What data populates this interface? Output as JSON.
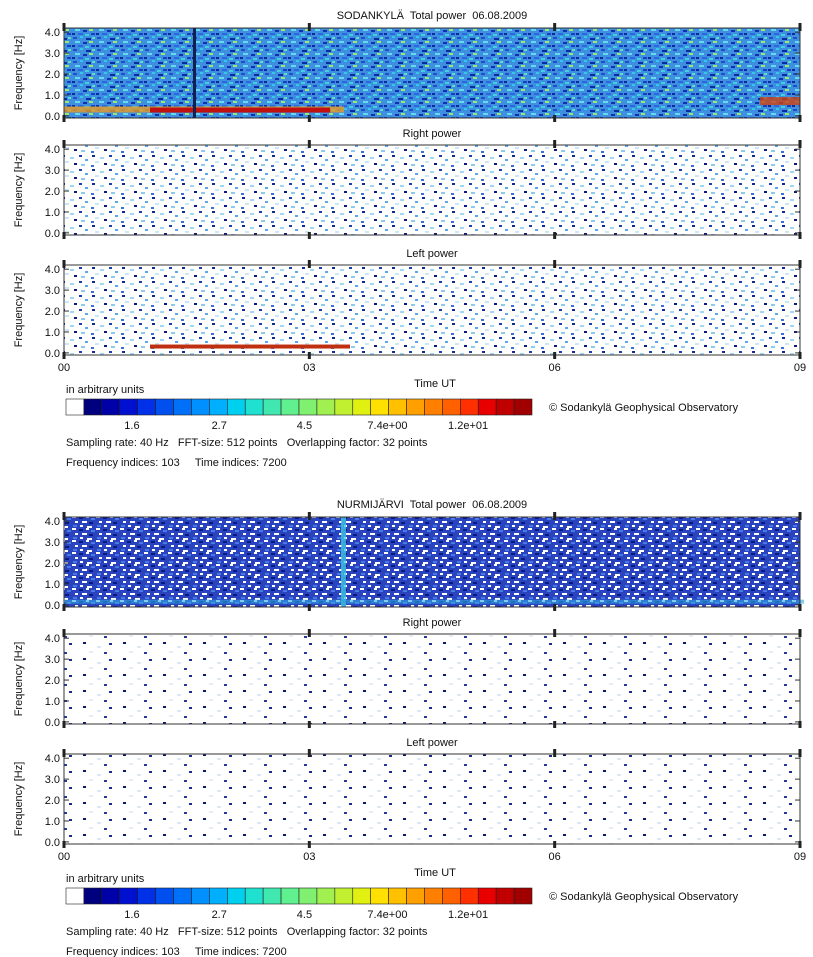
{
  "chart_data": [
    {
      "type": "spectrogram",
      "title": "SODANKYLÄ  Total power  06.08.2009",
      "panel_titles": [
        "Right power",
        "Left power"
      ],
      "ylabel": "Frequency [Hz]",
      "xlabel": "Time UT",
      "ylim": [
        -0.1,
        4.2
      ],
      "yticks": [
        {
          "value": 0,
          "label": "0.0"
        },
        {
          "value": 1,
          "label": "1.0"
        },
        {
          "value": 2,
          "label": "2.0"
        },
        {
          "value": 3,
          "label": "3.0"
        },
        {
          "value": 4,
          "label": "4.0"
        }
      ],
      "xlim": [
        0,
        9
      ],
      "xticks": [
        {
          "value": 0,
          "label": "00"
        },
        {
          "value": 3,
          "label": "03"
        },
        {
          "value": 6,
          "label": "06"
        },
        {
          "value": 9,
          "label": "09"
        }
      ],
      "colorbar": {
        "label": "in arbitrary units",
        "log": true,
        "lim": [
          1.2,
          17.6
        ],
        "ticks": [
          1.6,
          2.7,
          4.5,
          {
            "value": 7.4,
            "label": "7.4e+00"
          },
          {
            "value": 12,
            "label": "1.2e+01"
          }
        ],
        "colors": [
          "#ffffff",
          "#00007f",
          "#0000a8",
          "#0010d0",
          "#0030e8",
          "#0050f0",
          "#0070f8",
          "#0090ff",
          "#00b0ff",
          "#00d0f0",
          "#20e0d0",
          "#40e8b0",
          "#60f090",
          "#80f070",
          "#a0f050",
          "#c0f030",
          "#e0f010",
          "#ffe000",
          "#ffc000",
          "#ffa000",
          "#ff8000",
          "#ff6000",
          "#ff3000",
          "#e80000",
          "#c00000",
          "#a00000"
        ]
      },
      "info": [
        "Sampling rate: 40 Hz   FFT-size: 512 points   Overlapping factor: 32 points",
        "Frequency indices: 103     Time indices: 7200"
      ],
      "copyright": "© Sodankylä Geophysical Observatory"
    },
    {
      "type": "spectrogram",
      "title": "NURMIJÄRVI  Total power  06.08.2009",
      "panel_titles": [
        "Right power",
        "Left power"
      ],
      "ylabel": "Frequency [Hz]",
      "xlabel": "Time UT",
      "ylim": [
        -0.1,
        4.2
      ],
      "yticks": [
        {
          "value": 0,
          "label": "0.0"
        },
        {
          "value": 1,
          "label": "1.0"
        },
        {
          "value": 2,
          "label": "2.0"
        },
        {
          "value": 3,
          "label": "3.0"
        },
        {
          "value": 4,
          "label": "4.0"
        }
      ],
      "xlim": [
        0,
        9
      ],
      "xticks": [
        {
          "value": 0,
          "label": "00"
        },
        {
          "value": 3,
          "label": "03"
        },
        {
          "value": 6,
          "label": "06"
        },
        {
          "value": 9,
          "label": "09"
        }
      ],
      "colorbar": {
        "label": "in arbitrary units",
        "log": true,
        "lim": [
          1.2,
          17.6
        ],
        "ticks": [
          1.6,
          2.7,
          4.5,
          {
            "value": 7.4,
            "label": "7.4e+00"
          },
          {
            "value": 12,
            "label": "1.2e+01"
          }
        ],
        "colors": [
          "#ffffff",
          "#00007f",
          "#0000a8",
          "#0010d0",
          "#0030e8",
          "#0050f0",
          "#0070f8",
          "#0090ff",
          "#00b0ff",
          "#00d0f0",
          "#20e0d0",
          "#40e8b0",
          "#60f090",
          "#80f070",
          "#a0f050",
          "#c0f030",
          "#e0f010",
          "#ffe000",
          "#ffc000",
          "#ffa000",
          "#ff8000",
          "#ff6000",
          "#ff3000",
          "#e80000",
          "#c00000",
          "#a00000"
        ]
      },
      "info": [
        "Sampling rate: 40 Hz   FFT-size: 512 points   Overlapping factor: 32 points",
        "Frequency indices: 103     Time indices: 7200"
      ],
      "copyright": "© Sodankylä Geophysical Observatory"
    }
  ]
}
